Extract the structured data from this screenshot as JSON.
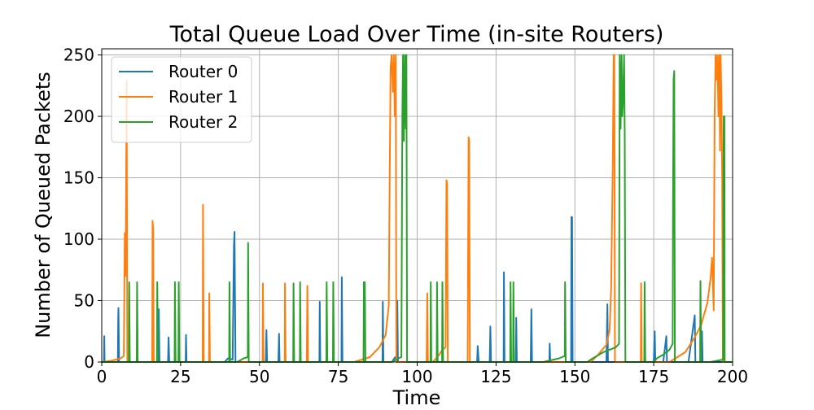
{
  "chart_data": {
    "type": "line",
    "title": "Total Queue Load Over Time (in-site Routers)",
    "xlabel": "Time",
    "ylabel": "Number of Queued Packets",
    "xlim": [
      0,
      200
    ],
    "ylim": [
      0,
      255
    ],
    "xticks": [
      0,
      25,
      50,
      75,
      100,
      125,
      150,
      175,
      200
    ],
    "yticks": [
      0,
      50,
      100,
      150,
      200,
      250
    ],
    "grid": true,
    "legend_position": "top-left",
    "series": [
      {
        "name": "Router 0",
        "color": "#1f77b4",
        "points": [
          [
            0,
            0
          ],
          [
            0.7,
            0
          ],
          [
            0.8,
            21
          ],
          [
            0.9,
            0
          ],
          [
            5.1,
            0
          ],
          [
            5.2,
            35
          ],
          [
            5.3,
            44
          ],
          [
            5.5,
            0
          ],
          [
            11,
            0
          ],
          [
            17,
            0
          ],
          [
            18,
            0
          ],
          [
            18.1,
            43
          ],
          [
            18.3,
            0
          ],
          [
            21,
            0
          ],
          [
            21.2,
            20
          ],
          [
            21.4,
            0
          ],
          [
            24,
            0
          ],
          [
            26.6,
            0
          ],
          [
            26.7,
            22
          ],
          [
            26.9,
            0
          ],
          [
            39,
            0
          ],
          [
            40,
            3
          ],
          [
            41.5,
            2
          ],
          [
            41.9,
            95
          ],
          [
            42.1,
            106
          ],
          [
            42.4,
            0
          ],
          [
            44,
            0
          ],
          [
            52,
            0
          ],
          [
            52.2,
            26
          ],
          [
            52.4,
            0
          ],
          [
            56,
            0
          ],
          [
            56.2,
            23
          ],
          [
            56.4,
            0
          ],
          [
            64,
            0
          ],
          [
            64.8,
            0
          ],
          [
            69,
            0
          ],
          [
            69.1,
            49
          ],
          [
            69.3,
            0
          ],
          [
            72,
            0
          ],
          [
            76,
            0
          ],
          [
            76.1,
            69
          ],
          [
            76.3,
            0
          ],
          [
            78,
            0
          ],
          [
            89,
            0
          ],
          [
            89.1,
            49
          ],
          [
            89.3,
            0
          ],
          [
            92,
            0
          ],
          [
            93,
            4
          ],
          [
            93.5,
            2
          ],
          [
            93.7,
            50
          ],
          [
            93.9,
            0
          ],
          [
            97,
            0
          ],
          [
            102,
            0
          ],
          [
            102.5,
            0
          ],
          [
            114,
            0
          ],
          [
            119,
            0
          ],
          [
            119.2,
            13
          ],
          [
            119.5,
            0
          ],
          [
            123,
            0
          ],
          [
            123.2,
            29
          ],
          [
            123.4,
            0
          ],
          [
            126,
            0
          ],
          [
            127.4,
            0
          ],
          [
            127.5,
            73
          ],
          [
            127.7,
            0
          ],
          [
            130,
            0
          ],
          [
            131.3,
            0
          ],
          [
            131.4,
            36
          ],
          [
            131.6,
            0
          ],
          [
            134,
            0
          ],
          [
            134.5,
            0
          ],
          [
            136,
            0
          ],
          [
            136.2,
            43
          ],
          [
            136.4,
            0
          ],
          [
            140,
            0
          ],
          [
            141.9,
            0
          ],
          [
            142,
            15
          ],
          [
            142.2,
            0
          ],
          [
            146,
            0
          ],
          [
            148.8,
            0
          ],
          [
            148.9,
            118
          ],
          [
            149.1,
            118
          ],
          [
            149.3,
            0
          ],
          [
            152,
            0
          ],
          [
            160,
            0
          ],
          [
            160.3,
            47
          ],
          [
            160.5,
            0
          ],
          [
            162,
            0
          ],
          [
            163,
            0
          ],
          [
            164,
            0
          ],
          [
            166,
            0
          ],
          [
            170,
            0
          ],
          [
            175,
            0
          ],
          [
            175.3,
            25
          ],
          [
            175.5,
            0
          ],
          [
            178,
            0
          ],
          [
            179,
            21
          ],
          [
            179.2,
            0
          ],
          [
            186,
            0
          ],
          [
            188,
            38
          ],
          [
            188.2,
            0
          ],
          [
            190,
            0
          ],
          [
            190.3,
            25
          ],
          [
            190.5,
            0
          ],
          [
            200,
            0
          ]
        ]
      },
      {
        "name": "Router 1",
        "color": "#ff7f0e",
        "points": [
          [
            0,
            0
          ],
          [
            3,
            1
          ],
          [
            6,
            3
          ],
          [
            7,
            5
          ],
          [
            7.3,
            105
          ],
          [
            7.5,
            70
          ],
          [
            7.7,
            128
          ],
          [
            7.9,
            229
          ],
          [
            8.1,
            0
          ],
          [
            10,
            0
          ],
          [
            16,
            0
          ],
          [
            16.1,
            115
          ],
          [
            16.3,
            108
          ],
          [
            16.5,
            0
          ],
          [
            19,
            0
          ],
          [
            32,
            0
          ],
          [
            32.1,
            128
          ],
          [
            32.3,
            0
          ],
          [
            34,
            0
          ],
          [
            34.1,
            56
          ],
          [
            34.3,
            0
          ],
          [
            36,
            0
          ],
          [
            46,
            0
          ],
          [
            50,
            0
          ],
          [
            51,
            0
          ],
          [
            51.1,
            64
          ],
          [
            51.3,
            0
          ],
          [
            53,
            0
          ],
          [
            58,
            0
          ],
          [
            58.1,
            64
          ],
          [
            58.3,
            0
          ],
          [
            60,
            0
          ],
          [
            65,
            0
          ],
          [
            65.2,
            62
          ],
          [
            65.4,
            0
          ],
          [
            68,
            0
          ],
          [
            80,
            0
          ],
          [
            85,
            4
          ],
          [
            88,
            12
          ],
          [
            90,
            22
          ],
          [
            91,
            46
          ],
          [
            91.3,
            155
          ],
          [
            91.6,
            240
          ],
          [
            91.9,
            250
          ],
          [
            92.3,
            220
          ],
          [
            92.6,
            250
          ],
          [
            92.9,
            200
          ],
          [
            93.2,
            250
          ],
          [
            93.4,
            0
          ],
          [
            96,
            0
          ],
          [
            103,
            0
          ],
          [
            103.2,
            56
          ],
          [
            103.4,
            0
          ],
          [
            105,
            0
          ],
          [
            107,
            6
          ],
          [
            108,
            10
          ],
          [
            109,
            12
          ],
          [
            109.3,
            148
          ],
          [
            109.5,
            145
          ],
          [
            109.7,
            0
          ],
          [
            111,
            0
          ],
          [
            116,
            0
          ],
          [
            116.3,
            183
          ],
          [
            116.5,
            180
          ],
          [
            116.7,
            0
          ],
          [
            119,
            0
          ],
          [
            150,
            0
          ],
          [
            155,
            0
          ],
          [
            157,
            5
          ],
          [
            160,
            14
          ],
          [
            161,
            26
          ],
          [
            161.5,
            60
          ],
          [
            162,
            160
          ],
          [
            162.3,
            250
          ],
          [
            162.5,
            250
          ],
          [
            162.7,
            0
          ],
          [
            165,
            0
          ],
          [
            170,
            0
          ],
          [
            170.9,
            0
          ],
          [
            171,
            64
          ],
          [
            171.2,
            0
          ],
          [
            175,
            0
          ],
          [
            180,
            0
          ],
          [
            185,
            8
          ],
          [
            188,
            20
          ],
          [
            190,
            30
          ],
          [
            192,
            48
          ],
          [
            193,
            68
          ],
          [
            193.5,
            85
          ],
          [
            194,
            42
          ],
          [
            194.3,
            200
          ],
          [
            194.6,
            250
          ],
          [
            194.9,
            230
          ],
          [
            195.2,
            250
          ],
          [
            195.5,
            200
          ],
          [
            195.8,
            250
          ],
          [
            196,
            172
          ],
          [
            196.2,
            250
          ],
          [
            196.5,
            210
          ],
          [
            196.7,
            150
          ],
          [
            196.9,
            0
          ],
          [
            200,
            0
          ]
        ]
      },
      {
        "name": "Router 2",
        "color": "#2ca02c",
        "points": [
          [
            0,
            0
          ],
          [
            8.6,
            0
          ],
          [
            8.7,
            65
          ],
          [
            8.9,
            0
          ],
          [
            10,
            0
          ],
          [
            11.1,
            0
          ],
          [
            11.2,
            65
          ],
          [
            11.4,
            0
          ],
          [
            14,
            0
          ],
          [
            17.5,
            0
          ],
          [
            17.6,
            65
          ],
          [
            17.8,
            0
          ],
          [
            19,
            0
          ],
          [
            20,
            0
          ],
          [
            23.1,
            0
          ],
          [
            23.2,
            65
          ],
          [
            23.4,
            0
          ],
          [
            24.3,
            0
          ],
          [
            24.4,
            65
          ],
          [
            24.6,
            0
          ],
          [
            27,
            0
          ],
          [
            40.4,
            0
          ],
          [
            40.5,
            65
          ],
          [
            40.7,
            0
          ],
          [
            43,
            0
          ],
          [
            45,
            3
          ],
          [
            46.3,
            4
          ],
          [
            46.4,
            97
          ],
          [
            46.6,
            0
          ],
          [
            48,
            0
          ],
          [
            60,
            0
          ],
          [
            60.7,
            0
          ],
          [
            60.8,
            64
          ],
          [
            61,
            0
          ],
          [
            62.8,
            0
          ],
          [
            62.9,
            65
          ],
          [
            63.1,
            0
          ],
          [
            71.2,
            0
          ],
          [
            71.3,
            65
          ],
          [
            71.5,
            0
          ],
          [
            73.3,
            0
          ],
          [
            73.4,
            65
          ],
          [
            73.6,
            0
          ],
          [
            77,
            0
          ],
          [
            83,
            0
          ],
          [
            83.1,
            65
          ],
          [
            83.4,
            65
          ],
          [
            83.6,
            0
          ],
          [
            86,
            0
          ],
          [
            92,
            0
          ],
          [
            94,
            3
          ],
          [
            95,
            4
          ],
          [
            95.3,
            200
          ],
          [
            95.5,
            250
          ],
          [
            95.8,
            180
          ],
          [
            96.1,
            250
          ],
          [
            96.4,
            190
          ],
          [
            96.6,
            250
          ],
          [
            96.8,
            0
          ],
          [
            98,
            0
          ],
          [
            104.2,
            0
          ],
          [
            104.3,
            65
          ],
          [
            104.5,
            0
          ],
          [
            106.2,
            0
          ],
          [
            106.3,
            65
          ],
          [
            106.5,
            0
          ],
          [
            107.9,
            0
          ],
          [
            108,
            65
          ],
          [
            108.2,
            0
          ],
          [
            112,
            0
          ],
          [
            129.5,
            0
          ],
          [
            129.6,
            65
          ],
          [
            129.8,
            0
          ],
          [
            130.4,
            0
          ],
          [
            130.5,
            65
          ],
          [
            130.7,
            0
          ],
          [
            140,
            0
          ],
          [
            145,
            3
          ],
          [
            146.8,
            5
          ],
          [
            146.9,
            65
          ],
          [
            147.1,
            0
          ],
          [
            149,
            0
          ],
          [
            154,
            0
          ],
          [
            155,
            2
          ],
          [
            157,
            5
          ],
          [
            159,
            8
          ],
          [
            161,
            10
          ],
          [
            163,
            12
          ],
          [
            164,
            15
          ],
          [
            164.2,
            250
          ],
          [
            164.5,
            190
          ],
          [
            164.8,
            250
          ],
          [
            165,
            200
          ],
          [
            165.3,
            215
          ],
          [
            165.6,
            250
          ],
          [
            165.8,
            185
          ],
          [
            166,
            0
          ],
          [
            168,
            0
          ],
          [
            172,
            0
          ],
          [
            172.1,
            65
          ],
          [
            172.3,
            0
          ],
          [
            175,
            0
          ],
          [
            176,
            3
          ],
          [
            178,
            6
          ],
          [
            180,
            10
          ],
          [
            181,
            15
          ],
          [
            181.1,
            130
          ],
          [
            181.2,
            170
          ],
          [
            181.3,
            230
          ],
          [
            181.5,
            237
          ],
          [
            181.7,
            0
          ],
          [
            183,
            0
          ],
          [
            186,
            0
          ],
          [
            189.7,
            0
          ],
          [
            189.8,
            66
          ],
          [
            190,
            0
          ],
          [
            193,
            0
          ],
          [
            197,
            2
          ],
          [
            197.1,
            150
          ],
          [
            197.2,
            200
          ],
          [
            197.4,
            200
          ],
          [
            197.5,
            0
          ],
          [
            200,
            0
          ]
        ]
      }
    ]
  }
}
